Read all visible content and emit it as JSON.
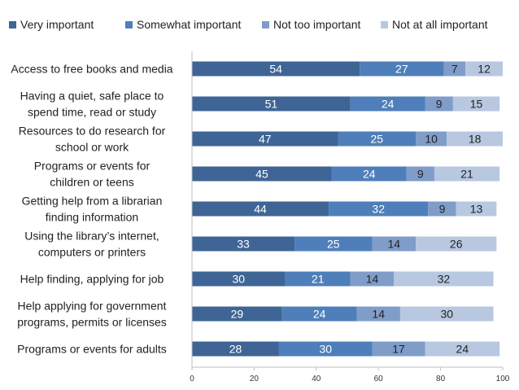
{
  "chart_data": {
    "type": "bar",
    "orientation": "horizontal",
    "stacked": true,
    "categories": [
      "Access to free books and media",
      "Having a quiet, safe place to spend time, read or study",
      "Resources to do research for school or work",
      "Programs or events for children or teens",
      "Getting help from a librarian finding information",
      "Using the library’s internet, computers or printers",
      "Help finding, applying for job",
      "Help applying for government programs, permits or licenses",
      "Programs or events for adults"
    ],
    "category_lines": [
      [
        "Access to free books and media"
      ],
      [
        "Having a quiet, safe place to",
        "spend time, read or study"
      ],
      [
        "Resources to do research for",
        "school or work"
      ],
      [
        "Programs or events for",
        "children or teens"
      ],
      [
        "Getting help from a librarian",
        "finding information"
      ],
      [
        "Using the library’s internet,",
        "computers or printers"
      ],
      [
        "Help finding, applying for job"
      ],
      [
        "Help applying for government",
        "programs, permits or licenses"
      ],
      [
        "Programs or events for adults"
      ]
    ],
    "series": [
      {
        "name": "Very important",
        "color": "#3f6596",
        "values": [
          54,
          51,
          47,
          45,
          44,
          33,
          30,
          29,
          28
        ]
      },
      {
        "name": "Somewhat important",
        "color": "#4f7fba",
        "values": [
          27,
          24,
          25,
          24,
          32,
          25,
          21,
          24,
          30
        ]
      },
      {
        "name": "Not too important",
        "color": "#809dc9",
        "values": [
          7,
          9,
          10,
          9,
          9,
          14,
          14,
          14,
          17
        ]
      },
      {
        "name": "Not at all important",
        "color": "#b8c8e1",
        "values": [
          12,
          15,
          18,
          21,
          13,
          26,
          32,
          30,
          24
        ]
      }
    ],
    "label_colors": [
      "#ffffff",
      "#ffffff",
      "#222222",
      "#222222"
    ],
    "xlim": [
      0,
      100
    ],
    "xticks": [
      0,
      20,
      40,
      60,
      80,
      100
    ],
    "legend_position": "top",
    "title": "",
    "xlabel": "",
    "ylabel": ""
  }
}
